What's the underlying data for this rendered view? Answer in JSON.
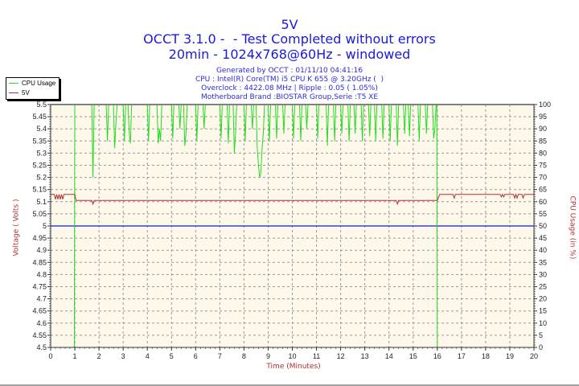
{
  "header": {
    "title": "5V",
    "subtitle": "OCCT 3.1.0 -  - Test Completed without errors",
    "config": "20min - 1024x768@60Hz - windowed"
  },
  "info": {
    "generated": "Generated by OCCT : 01/11/10 04:41:16",
    "cpu": "CPU : Intel(R) Core(TM) i5 CPU K 655 @ 3.20GHz (  )",
    "overclock": "Overclock : 4422.08 MHz | Ripple : 0.05 ( 1.05%)",
    "motherboard": "Motherboard Brand :BIOSTAR Group,Serie :T5 XE"
  },
  "legend": [
    {
      "label": "CPU Usage",
      "color": "#22dd22"
    },
    {
      "label": "5V",
      "color": "#b03030"
    }
  ],
  "colors": {
    "plot_bg": "#fdf8ea",
    "grid": "#999999",
    "cpu": "#22dd22",
    "voltage": "#b03030",
    "reference": "#3344dd"
  },
  "chart_data": {
    "type": "line",
    "title": "5V",
    "xlabel": "Time (Minutes)",
    "ylabel": "Voltage ( Volts )",
    "y2label": "CPU Usage (in %)",
    "xlim": [
      0,
      20
    ],
    "ylim": [
      4.5,
      5.5
    ],
    "y2lim": [
      0,
      100
    ],
    "x_ticks": [
      "0",
      "1",
      "2",
      "3",
      "4",
      "5",
      "6",
      "7",
      "8",
      "9",
      "10",
      "11",
      "12",
      "13",
      "14",
      "15",
      "16",
      "17",
      "18",
      "19",
      "20"
    ],
    "y_ticks": [
      "5.5",
      "5.45",
      "5.4",
      "5.35",
      "5.3",
      "5.25",
      "5.2",
      "5.15",
      "5.1",
      "5.05",
      "5",
      "4.95",
      "4.9",
      "4.85",
      "4.8",
      "4.75",
      "4.7",
      "4.65",
      "4.6",
      "4.55",
      "4.5"
    ],
    "y2_ticks": [
      "100",
      "95",
      "90",
      "85",
      "80",
      "75",
      "70",
      "65",
      "60",
      "55",
      "50",
      "45",
      "40",
      "35",
      "30",
      "25",
      "20",
      "15",
      "10",
      "5",
      "0"
    ],
    "grid": true,
    "legend_position": "top-left outside",
    "reference_line": {
      "axis": "y",
      "value": 5.0,
      "color": "#3344dd"
    },
    "series": [
      {
        "name": "5V",
        "axis": "left",
        "x": [
          0,
          0.15,
          0.2,
          0.25,
          0.3,
          0.35,
          0.4,
          0.45,
          0.5,
          0.55,
          0.6,
          0.65,
          1.0,
          1.05,
          1.7,
          1.75,
          1.8,
          14.3,
          14.35,
          14.4,
          16.0,
          16.1,
          16.65,
          16.7,
          16.75,
          18.6,
          18.65,
          18.7,
          18.75,
          18.8,
          19.15,
          19.2,
          19.25,
          19.3,
          19.35,
          19.5,
          19.55,
          19.6,
          20.0
        ],
        "values": [
          5.13,
          5.13,
          5.11,
          5.13,
          5.11,
          5.13,
          5.11,
          5.13,
          5.11,
          5.13,
          5.13,
          5.13,
          5.13,
          5.105,
          5.105,
          5.09,
          5.105,
          5.105,
          5.09,
          5.105,
          5.105,
          5.13,
          5.13,
          5.115,
          5.13,
          5.13,
          5.12,
          5.13,
          5.12,
          5.13,
          5.13,
          5.115,
          5.13,
          5.115,
          5.13,
          5.13,
          5.115,
          5.13,
          5.13
        ]
      },
      {
        "name": "CPU Usage",
        "axis": "right",
        "x": [
          0,
          0.98,
          1.0,
          1.02,
          1.7,
          1.75,
          1.8,
          2.3,
          2.35,
          2.4,
          2.6,
          2.65,
          2.7,
          2.75,
          3.0,
          3.05,
          3.1,
          3.2,
          3.25,
          3.3,
          3.35,
          4.0,
          4.05,
          4.1,
          4.4,
          4.45,
          4.5,
          4.55,
          4.6,
          5.0,
          5.05,
          5.1,
          5.3,
          5.35,
          5.4,
          5.5,
          5.55,
          5.6,
          5.65,
          6.0,
          6.05,
          6.1,
          6.3,
          6.35,
          6.4,
          7.0,
          7.05,
          7.1,
          7.3,
          7.35,
          7.4,
          7.55,
          7.6,
          7.65,
          7.7,
          8.0,
          8.05,
          8.1,
          8.3,
          8.35,
          8.4,
          8.5,
          8.55,
          8.6,
          8.65,
          8.7,
          8.75,
          8.8,
          8.85,
          9.0,
          9.05,
          9.1,
          9.3,
          9.35,
          9.4,
          9.6,
          9.65,
          9.7,
          10.0,
          10.05,
          10.1,
          10.3,
          10.35,
          10.4,
          10.55,
          10.6,
          10.65,
          11.0,
          11.05,
          11.1,
          11.4,
          11.45,
          11.5,
          11.7,
          11.75,
          11.8,
          12.0,
          12.05,
          12.1,
          12.3,
          12.35,
          12.4,
          12.55,
          12.6,
          12.65,
          12.85,
          12.9,
          12.95,
          13.15,
          13.2,
          13.25,
          13.4,
          13.45,
          13.5,
          13.7,
          13.75,
          13.8,
          14.0,
          14.05,
          14.1,
          14.3,
          14.35,
          14.4,
          14.6,
          14.65,
          14.7,
          14.8,
          14.85,
          14.9,
          15.2,
          15.25,
          15.3,
          15.5,
          15.55,
          15.6,
          15.8,
          15.85,
          15.9,
          15.95,
          15.98,
          16.0,
          16.02,
          20.0
        ],
        "values": [
          0,
          0,
          100,
          100,
          100,
          70,
          100,
          100,
          85,
          100,
          100,
          82,
          92,
          100,
          100,
          85,
          100,
          100,
          88,
          84,
          100,
          100,
          85,
          100,
          100,
          84,
          90,
          85,
          100,
          100,
          86,
          100,
          100,
          90,
          100,
          100,
          83,
          88,
          100,
          100,
          85,
          100,
          100,
          90,
          100,
          100,
          86,
          100,
          100,
          84,
          100,
          100,
          80,
          88,
          100,
          100,
          85,
          100,
          100,
          90,
          100,
          100,
          82,
          75,
          70,
          72,
          82,
          88,
          100,
          100,
          85,
          100,
          100,
          86,
          100,
          100,
          88,
          100,
          100,
          86,
          100,
          100,
          85,
          100,
          100,
          90,
          100,
          100,
          86,
          100,
          100,
          83,
          100,
          100,
          85,
          100,
          100,
          88,
          100,
          100,
          85,
          100,
          100,
          88,
          100,
          100,
          85,
          100,
          100,
          87,
          100,
          100,
          85,
          100,
          100,
          86,
          100,
          100,
          85,
          100,
          100,
          83,
          100,
          100,
          88,
          100,
          100,
          87,
          100,
          100,
          85,
          100,
          100,
          88,
          100,
          100,
          86,
          90,
          100,
          100,
          0,
          0,
          0
        ]
      }
    ]
  }
}
